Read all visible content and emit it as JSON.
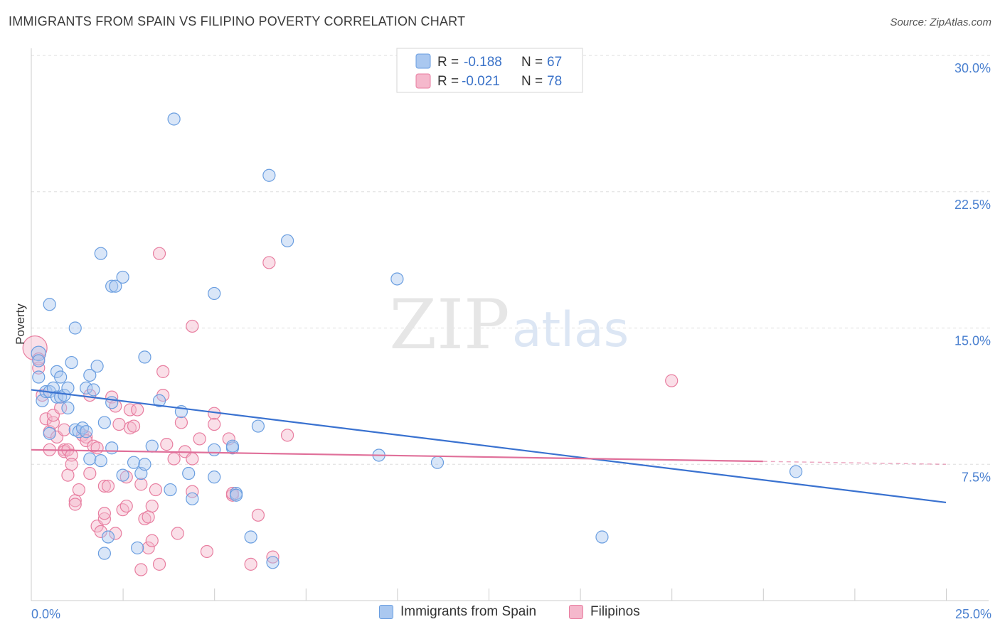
{
  "header": {
    "title": "IMMIGRANTS FROM SPAIN VS FILIPINO POVERTY CORRELATION CHART",
    "source": "Source: ZipAtlas.com"
  },
  "watermark": {
    "zip": "ZIP",
    "atlas": "atlas"
  },
  "legend": {
    "series1": {
      "r_label": "R =",
      "r_value": "-0.188",
      "n_label": "N =",
      "n_value": "67"
    },
    "series2": {
      "r_label": "R =",
      "r_value": "-0.021",
      "n_label": "N =",
      "n_value": "78"
    }
  },
  "bottom_legend": {
    "series1": "Immigrants from Spain",
    "series2": "Filipinos"
  },
  "colors": {
    "blue_fill": "#aac8f0",
    "blue_stroke": "#6a9ee0",
    "blue_line": "#3a72d0",
    "pink_fill": "#f5b8cc",
    "pink_stroke": "#e87ea0",
    "pink_line": "#e0709a",
    "grid": "#dddddd",
    "axis_label": "#4a80d0"
  },
  "chart_data": {
    "type": "scatter",
    "title": "IMMIGRANTS FROM SPAIN VS FILIPINO POVERTY CORRELATION CHART",
    "xlabel": "",
    "ylabel": "Poverty",
    "xlim": [
      0,
      25
    ],
    "ylim": [
      0,
      30
    ],
    "y_ticks": [
      7.5,
      15.0,
      22.5,
      30.0
    ],
    "y_tick_labels": [
      "7.5%",
      "15.0%",
      "22.5%",
      "30.0%"
    ],
    "x_tick_labels": [
      "0.0%",
      "25.0%"
    ],
    "x_minor_ticks": [
      2.5,
      5,
      7.5,
      10,
      12.5,
      15,
      17.5,
      20,
      22.5,
      25
    ],
    "series": [
      {
        "name": "Immigrants from Spain",
        "R": -0.188,
        "N": 67,
        "trend": {
          "x0": 0,
          "y0": 11.6,
          "x1": 25,
          "y1": 5.4,
          "dashed_from": null
        },
        "points": [
          [
            0.2,
            13.6,
            1.2
          ],
          [
            0.2,
            12.3,
            1.0
          ],
          [
            0.2,
            13.2,
            1.0
          ],
          [
            0.3,
            11.0,
            1.0
          ],
          [
            0.4,
            11.5,
            1.0
          ],
          [
            0.5,
            11.5,
            1.0
          ],
          [
            0.5,
            9.2,
            1.0
          ],
          [
            0.5,
            16.3,
            1.0
          ],
          [
            0.6,
            11.7,
            1.0
          ],
          [
            0.7,
            11.2,
            1.0
          ],
          [
            0.7,
            12.6,
            1.0
          ],
          [
            0.8,
            12.3,
            1.0
          ],
          [
            0.8,
            11.2,
            1.0
          ],
          [
            0.9,
            11.3,
            1.0
          ],
          [
            1.0,
            11.7,
            1.0
          ],
          [
            1.0,
            10.6,
            1.0
          ],
          [
            1.1,
            13.1,
            1.0
          ],
          [
            1.2,
            15.0,
            1.0
          ],
          [
            1.2,
            9.4,
            1.0
          ],
          [
            1.3,
            9.3,
            1.0
          ],
          [
            1.4,
            9.5,
            1.0
          ],
          [
            1.5,
            11.7,
            1.0
          ],
          [
            1.5,
            9.3,
            1.0
          ],
          [
            1.6,
            7.8,
            1.0
          ],
          [
            1.6,
            12.4,
            1.0
          ],
          [
            1.7,
            11.6,
            1.0
          ],
          [
            1.8,
            12.9,
            1.0
          ],
          [
            1.9,
            19.1,
            1.0
          ],
          [
            1.9,
            7.7,
            1.0
          ],
          [
            2.0,
            2.6,
            1.0
          ],
          [
            2.0,
            9.8,
            1.0
          ],
          [
            2.1,
            3.5,
            1.0
          ],
          [
            2.2,
            17.3,
            1.0
          ],
          [
            2.2,
            8.4,
            1.0
          ],
          [
            2.3,
            17.3,
            1.0
          ],
          [
            2.2,
            10.9,
            1.0
          ],
          [
            2.5,
            17.8,
            1.0
          ],
          [
            2.5,
            6.9,
            1.0
          ],
          [
            2.8,
            7.6,
            1.0
          ],
          [
            2.9,
            2.9,
            1.0
          ],
          [
            3.0,
            7.0,
            1.0
          ],
          [
            3.1,
            7.5,
            1.0
          ],
          [
            3.1,
            13.4,
            1.0
          ],
          [
            3.3,
            8.5,
            1.0
          ],
          [
            3.5,
            11.0,
            1.0
          ],
          [
            3.8,
            6.1,
            1.0
          ],
          [
            3.9,
            26.5,
            1.0
          ],
          [
            4.1,
            10.4,
            1.0
          ],
          [
            4.3,
            7.0,
            1.0
          ],
          [
            4.4,
            5.6,
            1.0
          ],
          [
            5.0,
            16.9,
            1.0
          ],
          [
            5.0,
            8.3,
            1.0
          ],
          [
            5.0,
            6.8,
            1.0
          ],
          [
            5.5,
            8.4,
            1.0
          ],
          [
            5.5,
            8.5,
            1.0
          ],
          [
            5.6,
            5.9,
            1.0
          ],
          [
            5.6,
            5.8,
            1.0
          ],
          [
            6.0,
            3.5,
            1.0
          ],
          [
            6.2,
            9.6,
            1.0
          ],
          [
            6.5,
            23.4,
            1.0
          ],
          [
            6.6,
            2.1,
            1.0
          ],
          [
            7.0,
            19.8,
            1.0
          ],
          [
            9.5,
            8.0,
            1.0
          ],
          [
            10.0,
            17.7,
            1.0
          ],
          [
            11.1,
            7.6,
            1.0
          ],
          [
            15.6,
            3.5,
            1.0
          ],
          [
            20.9,
            7.1,
            1.0
          ]
        ]
      },
      {
        "name": "Filipinos",
        "R": -0.021,
        "N": 78,
        "trend": {
          "x0": 0,
          "y0": 8.3,
          "x1": 25,
          "y1": 7.5,
          "dashed_from": 20
        },
        "points": [
          [
            0.1,
            13.9,
            2.0
          ],
          [
            0.2,
            12.8,
            1.0
          ],
          [
            0.2,
            13.3,
            1.0
          ],
          [
            0.3,
            11.3,
            1.0
          ],
          [
            0.4,
            10.0,
            1.0
          ],
          [
            0.5,
            9.3,
            1.0
          ],
          [
            0.5,
            8.3,
            1.0
          ],
          [
            0.6,
            9.8,
            1.0
          ],
          [
            0.6,
            10.2,
            1.0
          ],
          [
            0.7,
            9.0,
            1.0
          ],
          [
            0.8,
            10.6,
            1.0
          ],
          [
            0.9,
            8.3,
            1.0
          ],
          [
            0.9,
            9.4,
            1.0
          ],
          [
            0.9,
            8.2,
            1.0
          ],
          [
            1.0,
            8.3,
            1.0
          ],
          [
            1.0,
            6.9,
            1.0
          ],
          [
            1.1,
            8.0,
            1.0
          ],
          [
            1.1,
            7.5,
            1.0
          ],
          [
            1.2,
            5.5,
            1.0
          ],
          [
            1.2,
            5.3,
            1.0
          ],
          [
            1.3,
            6.1,
            1.0
          ],
          [
            1.4,
            9.1,
            1.0
          ],
          [
            1.5,
            9.0,
            1.0
          ],
          [
            1.5,
            8.8,
            1.0
          ],
          [
            1.6,
            11.3,
            1.0
          ],
          [
            1.6,
            7.0,
            1.0
          ],
          [
            1.7,
            8.5,
            1.0
          ],
          [
            1.8,
            8.4,
            1.0
          ],
          [
            1.8,
            4.1,
            1.0
          ],
          [
            1.9,
            3.8,
            1.0
          ],
          [
            2.0,
            6.3,
            1.0
          ],
          [
            2.0,
            4.5,
            1.0
          ],
          [
            2.0,
            4.8,
            1.0
          ],
          [
            2.1,
            6.3,
            1.0
          ],
          [
            2.2,
            11.2,
            1.0
          ],
          [
            2.3,
            10.7,
            1.0
          ],
          [
            2.3,
            3.7,
            1.0
          ],
          [
            2.4,
            9.7,
            1.0
          ],
          [
            2.5,
            5.0,
            1.0
          ],
          [
            2.6,
            6.8,
            1.0
          ],
          [
            2.6,
            5.2,
            1.0
          ],
          [
            2.7,
            10.5,
            1.0
          ],
          [
            2.7,
            9.5,
            1.0
          ],
          [
            2.8,
            9.6,
            1.0
          ],
          [
            2.9,
            10.5,
            1.0
          ],
          [
            3.0,
            6.4,
            1.0
          ],
          [
            3.0,
            1.7,
            1.0
          ],
          [
            3.1,
            4.5,
            1.0
          ],
          [
            3.2,
            2.9,
            1.0
          ],
          [
            3.2,
            4.6,
            1.0
          ],
          [
            3.3,
            5.2,
            1.0
          ],
          [
            3.3,
            3.3,
            1.0
          ],
          [
            3.4,
            6.1,
            1.0
          ],
          [
            3.5,
            2.0,
            1.0
          ],
          [
            3.5,
            19.1,
            1.0
          ],
          [
            3.6,
            12.6,
            1.0
          ],
          [
            3.6,
            11.3,
            1.0
          ],
          [
            3.7,
            8.6,
            1.0
          ],
          [
            3.9,
            7.8,
            1.0
          ],
          [
            4.0,
            3.7,
            1.0
          ],
          [
            4.1,
            9.8,
            1.0
          ],
          [
            4.2,
            8.2,
            1.0
          ],
          [
            4.4,
            7.8,
            1.0
          ],
          [
            4.4,
            15.1,
            1.0
          ],
          [
            4.4,
            6.0,
            1.0
          ],
          [
            4.6,
            8.9,
            1.0
          ],
          [
            5.0,
            10.3,
            1.0
          ],
          [
            5.0,
            9.7,
            1.0
          ],
          [
            4.8,
            2.7,
            1.0
          ],
          [
            5.4,
            8.9,
            1.0
          ],
          [
            5.5,
            5.8,
            1.0
          ],
          [
            5.5,
            5.9,
            1.0
          ],
          [
            6.0,
            2.0,
            1.0
          ],
          [
            6.2,
            4.7,
            1.0
          ],
          [
            6.5,
            18.6,
            1.0
          ],
          [
            6.6,
            2.4,
            1.0
          ],
          [
            7.0,
            9.1,
            1.0
          ],
          [
            17.5,
            12.1,
            1.0
          ]
        ]
      }
    ]
  }
}
